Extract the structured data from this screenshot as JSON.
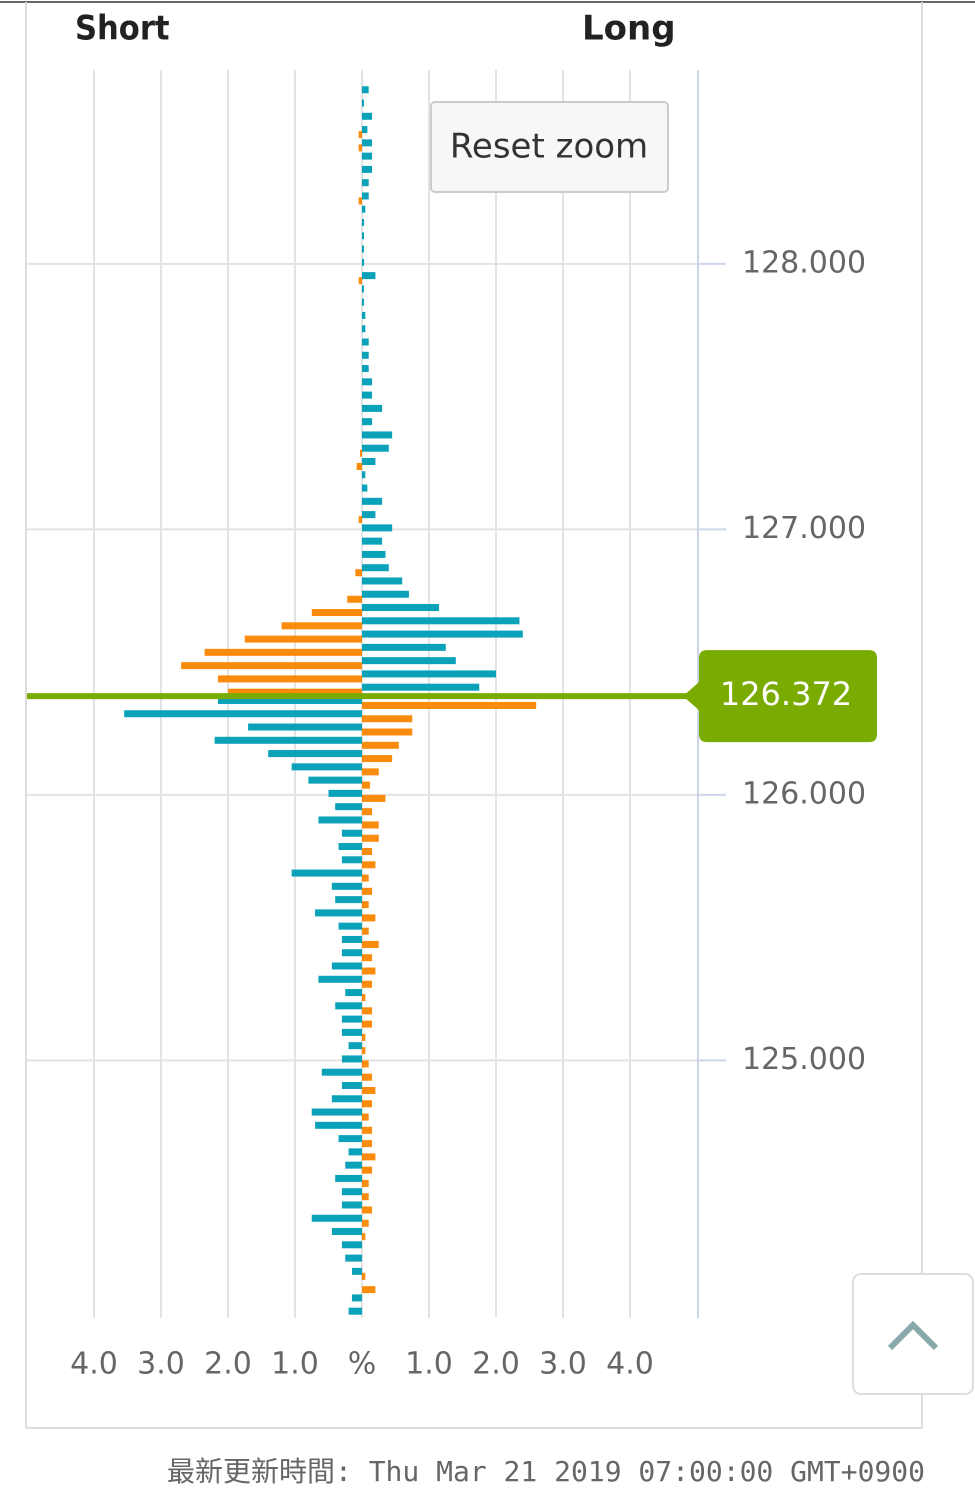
{
  "chart_data": {
    "type": "butterfly_bar",
    "left_label": "Short",
    "right_label": "Long",
    "reset_button": "Reset zoom",
    "footer": "最新更新時間: Thu Mar 21 2019 07:00:00 GMT+0900",
    "current_price": 126.372,
    "current_price_color": "#7aab00",
    "xlim": [
      -5,
      5
    ],
    "xticks": [
      {
        "value": -4,
        "label": "4.0"
      },
      {
        "value": -3,
        "label": "3.0"
      },
      {
        "value": -2,
        "label": "2.0"
      },
      {
        "value": -1,
        "label": "1.0"
      },
      {
        "value": 0,
        "label": "%"
      },
      {
        "value": 1,
        "label": "1.0"
      },
      {
        "value": 2,
        "label": "2.0"
      },
      {
        "value": 3,
        "label": "3.0"
      },
      {
        "value": 4,
        "label": "4.0"
      }
    ],
    "ylim": [
      124.03,
      128.73
    ],
    "yticks": [
      {
        "value": 125,
        "label": "125.000"
      },
      {
        "value": 126,
        "label": "126.000"
      },
      {
        "value": 127,
        "label": "127.000"
      },
      {
        "value": 128,
        "label": "128.000"
      }
    ],
    "grid": true,
    "y": [
      128.65,
      128.6,
      128.55,
      128.5,
      128.45,
      128.4,
      128.35,
      128.3,
      128.25,
      128.2,
      128.15,
      128.1,
      128.05,
      128.0,
      127.95,
      127.9,
      127.85,
      127.8,
      127.75,
      127.7,
      127.65,
      127.6,
      127.55,
      127.5,
      127.45,
      127.4,
      127.35,
      127.3,
      127.25,
      127.2,
      127.15,
      127.1,
      127.05,
      127.0,
      126.95,
      126.9,
      126.85,
      126.8,
      126.75,
      126.7,
      126.65,
      126.6,
      126.55,
      126.5,
      126.45,
      126.4,
      126.35,
      126.3,
      126.25,
      126.2,
      126.15,
      126.1,
      126.05,
      126.0,
      125.95,
      125.9,
      125.85,
      125.8,
      125.75,
      125.7,
      125.65,
      125.6,
      125.55,
      125.5,
      125.45,
      125.4,
      125.35,
      125.3,
      125.25,
      125.2,
      125.15,
      125.1,
      125.05,
      125.0,
      124.95,
      124.9,
      124.85,
      124.8,
      124.75,
      124.7,
      124.65,
      124.6,
      124.55,
      124.5,
      124.45,
      124.4,
      124.35,
      124.3,
      124.25,
      124.2,
      124.15,
      124.1,
      124.05
    ],
    "series": [
      {
        "color": "#0aa2b9",
        "values": [
          0.1,
          0.03,
          0.15,
          0.08,
          0.15,
          0.15,
          0.15,
          0.1,
          0.1,
          0.05,
          0.03,
          0.03,
          0.03,
          0.03,
          0.2,
          0.03,
          0.03,
          0.05,
          0.05,
          0.1,
          0.1,
          0.1,
          0.15,
          0.15,
          0.3,
          0.15,
          0.45,
          0.4,
          0.2,
          0.05,
          0.08,
          0.3,
          0.2,
          0.45,
          0.3,
          0.35,
          0.4,
          0.6,
          0.7,
          1.15,
          2.35,
          2.4,
          1.25,
          1.4,
          2.0,
          1.75,
          -2.15,
          -3.55,
          -1.7,
          -2.2,
          -1.4,
          -1.05,
          -0.8,
          -0.5,
          -0.4,
          -0.65,
          -0.3,
          -0.35,
          -0.3,
          -1.05,
          -0.45,
          -0.4,
          -0.7,
          -0.35,
          -0.3,
          -0.3,
          -0.45,
          -0.65,
          -0.25,
          -0.4,
          -0.3,
          -0.3,
          -0.2,
          -0.3,
          -0.6,
          -0.3,
          -0.45,
          -0.75,
          -0.7,
          -0.35,
          -0.2,
          -0.25,
          -0.4,
          -0.3,
          -0.3,
          -0.75,
          -0.45,
          -0.3,
          -0.25,
          -0.15,
          0,
          -0.15,
          -0.2
        ]
      },
      {
        "color": "#fb8c0b",
        "values": [
          0,
          0,
          0,
          -0.05,
          -0.05,
          0,
          0,
          0,
          -0.05,
          0,
          0,
          0,
          0,
          0,
          -0.05,
          0,
          0,
          0,
          0,
          0,
          0,
          0,
          0,
          0,
          0,
          0,
          0,
          -0.03,
          -0.08,
          0,
          0,
          0,
          -0.05,
          0,
          0,
          0,
          -0.1,
          0,
          -0.22,
          -0.75,
          -1.2,
          -1.75,
          -2.35,
          -2.7,
          -2.15,
          -2.0,
          2.6,
          0.75,
          0.75,
          0.55,
          0.45,
          0.25,
          0.12,
          0.35,
          0.15,
          0.25,
          0.25,
          0.15,
          0.2,
          0.1,
          0.15,
          0.1,
          0.2,
          0.1,
          0.25,
          0.15,
          0.2,
          0.15,
          0.05,
          0.15,
          0.15,
          0.05,
          0.05,
          0.1,
          0.15,
          0.2,
          0.15,
          0.1,
          0.15,
          0.15,
          0.2,
          0.15,
          0.1,
          0.1,
          0.15,
          0.1,
          0.05,
          0,
          0,
          0.05,
          0.2,
          0,
          0
        ]
      }
    ]
  }
}
